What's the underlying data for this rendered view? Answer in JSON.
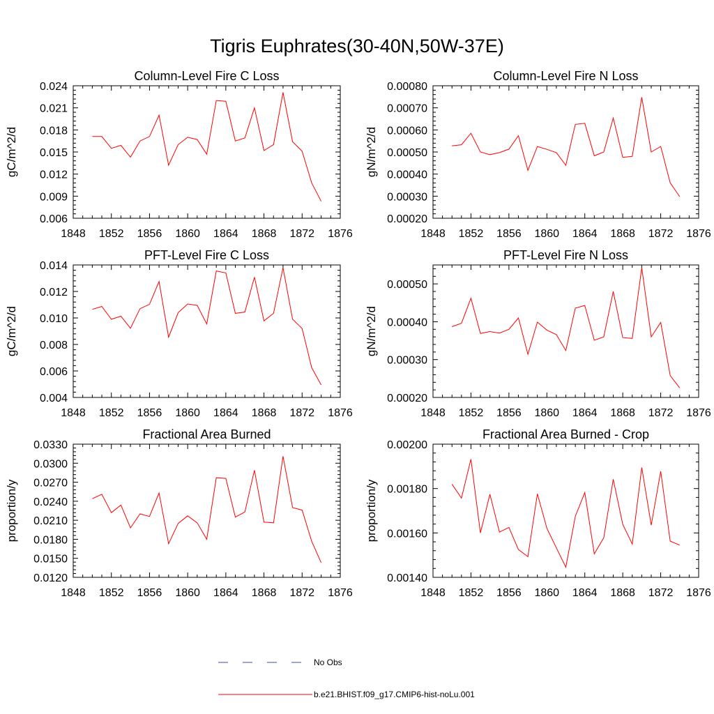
{
  "figure": {
    "title": "Tigris Euphrates(30-40N,50W-37E)"
  },
  "legend": [
    {
      "label": "No Obs",
      "color": "#3b4ba8",
      "dash": true
    },
    {
      "label": "b.e21.BHIST.f09_g17.CMIP6-hist-noLu.001",
      "color": "#ff0000",
      "dash": false
    }
  ],
  "chart_data": [
    {
      "type": "line",
      "title": "Column-Level Fire C Loss",
      "ylabel": "gC/m^2/d",
      "xlim": [
        1848,
        1876
      ],
      "ylim": [
        0.006,
        0.024
      ],
      "xticks": [
        "1848",
        "1852",
        "1856",
        "1860",
        "1864",
        "1868",
        "1872",
        "1876"
      ],
      "yticks": [
        "0.006",
        "0.009",
        "0.012",
        "0.015",
        "0.018",
        "0.021",
        "0.024"
      ],
      "x": [
        1850,
        1851,
        1852,
        1853,
        1854,
        1855,
        1856,
        1857,
        1858,
        1859,
        1860,
        1861,
        1862,
        1863,
        1864,
        1865,
        1866,
        1867,
        1868,
        1869,
        1870,
        1871,
        1872,
        1873,
        1874
      ],
      "series": [
        {
          "color": "#ff0000",
          "values": [
            0.0171,
            0.0171,
            0.0155,
            0.0159,
            0.0143,
            0.0165,
            0.0171,
            0.02,
            0.0132,
            0.016,
            0.017,
            0.0167,
            0.0147,
            0.022,
            0.0219,
            0.0165,
            0.0169,
            0.021,
            0.0152,
            0.016,
            0.0231,
            0.0164,
            0.0151,
            0.0108,
            0.0083
          ]
        }
      ]
    },
    {
      "type": "line",
      "title": "Column-Level Fire N Loss",
      "ylabel": "gN/m^2/d",
      "xlim": [
        1848,
        1876
      ],
      "ylim": [
        0.0002,
        0.0008
      ],
      "xticks": [
        "1848",
        "1852",
        "1856",
        "1860",
        "1864",
        "1868",
        "1872",
        "1876"
      ],
      "yticks": [
        "0.00020",
        "0.00030",
        "0.00040",
        "0.00050",
        "0.00060",
        "0.00070",
        "0.00080"
      ],
      "x": [
        1850,
        1851,
        1852,
        1853,
        1854,
        1855,
        1856,
        1857,
        1858,
        1859,
        1860,
        1861,
        1862,
        1863,
        1864,
        1865,
        1866,
        1867,
        1868,
        1869,
        1870,
        1871,
        1872,
        1873,
        1874
      ],
      "series": [
        {
          "color": "#ff0000",
          "values": [
            0.000528,
            0.000533,
            0.000585,
            0.0005,
            0.000488,
            0.000497,
            0.000513,
            0.000574,
            0.000417,
            0.000525,
            0.000512,
            0.000497,
            0.00044,
            0.000625,
            0.00063,
            0.000483,
            0.0005,
            0.000654,
            0.000476,
            0.00048,
            0.000748,
            0.0005,
            0.000525,
            0.00036,
            0.000298
          ]
        }
      ]
    },
    {
      "type": "line",
      "title": "PFT-Level Fire C Loss",
      "ylabel": "gC/m^2/d",
      "xlim": [
        1848,
        1876
      ],
      "ylim": [
        0.004,
        0.014
      ],
      "xticks": [
        "1848",
        "1852",
        "1856",
        "1860",
        "1864",
        "1868",
        "1872",
        "1876"
      ],
      "yticks": [
        "0.004",
        "0.006",
        "0.008",
        "0.010",
        "0.012",
        "0.014"
      ],
      "x": [
        1850,
        1851,
        1852,
        1853,
        1854,
        1855,
        1856,
        1857,
        1858,
        1859,
        1860,
        1861,
        1862,
        1863,
        1864,
        1865,
        1866,
        1867,
        1868,
        1869,
        1870,
        1871,
        1872,
        1873,
        1874
      ],
      "series": [
        {
          "color": "#ff0000",
          "values": [
            0.01065,
            0.01087,
            0.0099,
            0.01013,
            0.00922,
            0.0107,
            0.01103,
            0.01275,
            0.00855,
            0.0104,
            0.01105,
            0.01095,
            0.00955,
            0.01355,
            0.0134,
            0.01035,
            0.01045,
            0.01308,
            0.00978,
            0.01035,
            0.0138,
            0.0099,
            0.0092,
            0.00625,
            0.00495
          ]
        }
      ]
    },
    {
      "type": "line",
      "title": "PFT-Level Fire N Loss",
      "ylabel": "gN/m^2/d",
      "xlim": [
        1848,
        1876
      ],
      "ylim": [
        0.0002,
        0.00055
      ],
      "xticks": [
        "1848",
        "1852",
        "1856",
        "1860",
        "1864",
        "1868",
        "1872",
        "1876"
      ],
      "yticks": [
        "0.00020",
        "0.00030",
        "0.00040",
        "0.00050"
      ],
      "x": [
        1850,
        1851,
        1852,
        1853,
        1854,
        1855,
        1856,
        1857,
        1858,
        1859,
        1860,
        1861,
        1862,
        1863,
        1864,
        1865,
        1866,
        1867,
        1868,
        1869,
        1870,
        1871,
        1872,
        1873,
        1874
      ],
      "series": [
        {
          "color": "#ff0000",
          "values": [
            0.000387,
            0.000396,
            0.000462,
            0.000369,
            0.000374,
            0.00037,
            0.00038,
            0.00041,
            0.000314,
            0.000399,
            0.000378,
            0.000366,
            0.000324,
            0.000436,
            0.000443,
            0.000351,
            0.00036,
            0.00048,
            0.000358,
            0.000356,
            0.000543,
            0.00036,
            0.000398,
            0.000258,
            0.000225
          ]
        }
      ]
    },
    {
      "type": "line",
      "title": "Fractional Area Burned",
      "ylabel": "proportion/y",
      "xlim": [
        1848,
        1876
      ],
      "ylim": [
        0.012,
        0.033
      ],
      "xticks": [
        "1848",
        "1852",
        "1856",
        "1860",
        "1864",
        "1868",
        "1872",
        "1876"
      ],
      "yticks": [
        "0.0120",
        "0.0150",
        "0.0180",
        "0.0210",
        "0.0240",
        "0.0270",
        "0.0300",
        "0.0330"
      ],
      "x": [
        1850,
        1851,
        1852,
        1853,
        1854,
        1855,
        1856,
        1857,
        1858,
        1859,
        1860,
        1861,
        1862,
        1863,
        1864,
        1865,
        1866,
        1867,
        1868,
        1869,
        1870,
        1871,
        1872,
        1873,
        1874
      ],
      "series": [
        {
          "color": "#ff0000",
          "values": [
            0.0244,
            0.0251,
            0.0222,
            0.0234,
            0.0198,
            0.022,
            0.0216,
            0.0253,
            0.0173,
            0.0205,
            0.0217,
            0.0206,
            0.018,
            0.0277,
            0.0276,
            0.0215,
            0.0223,
            0.0289,
            0.0207,
            0.0206,
            0.0311,
            0.023,
            0.0226,
            0.0177,
            0.0143
          ]
        }
      ]
    },
    {
      "type": "line",
      "title": "Fractional Area Burned - Crop",
      "ylabel": "proportion/y",
      "xlim": [
        1848,
        1876
      ],
      "ylim": [
        0.0014,
        0.002
      ],
      "xticks": [
        "1848",
        "1852",
        "1856",
        "1860",
        "1864",
        "1868",
        "1872",
        "1876"
      ],
      "yticks": [
        "0.00140",
        "0.00160",
        "0.00180",
        "0.00200"
      ],
      "x": [
        1850,
        1851,
        1852,
        1853,
        1854,
        1855,
        1856,
        1857,
        1858,
        1859,
        1860,
        1861,
        1862,
        1863,
        1864,
        1865,
        1866,
        1867,
        1868,
        1869,
        1870,
        1871,
        1872,
        1873,
        1874
      ],
      "series": [
        {
          "color": "#ff0000",
          "values": [
            0.00182,
            0.001757,
            0.001932,
            0.0016,
            0.001774,
            0.001604,
            0.001625,
            0.001525,
            0.001493,
            0.001776,
            0.001621,
            0.001533,
            0.001446,
            0.001675,
            0.001782,
            0.001506,
            0.001578,
            0.001842,
            0.001639,
            0.00155,
            0.001895,
            0.001635,
            0.001878,
            0.001563,
            0.001545
          ]
        }
      ]
    }
  ]
}
